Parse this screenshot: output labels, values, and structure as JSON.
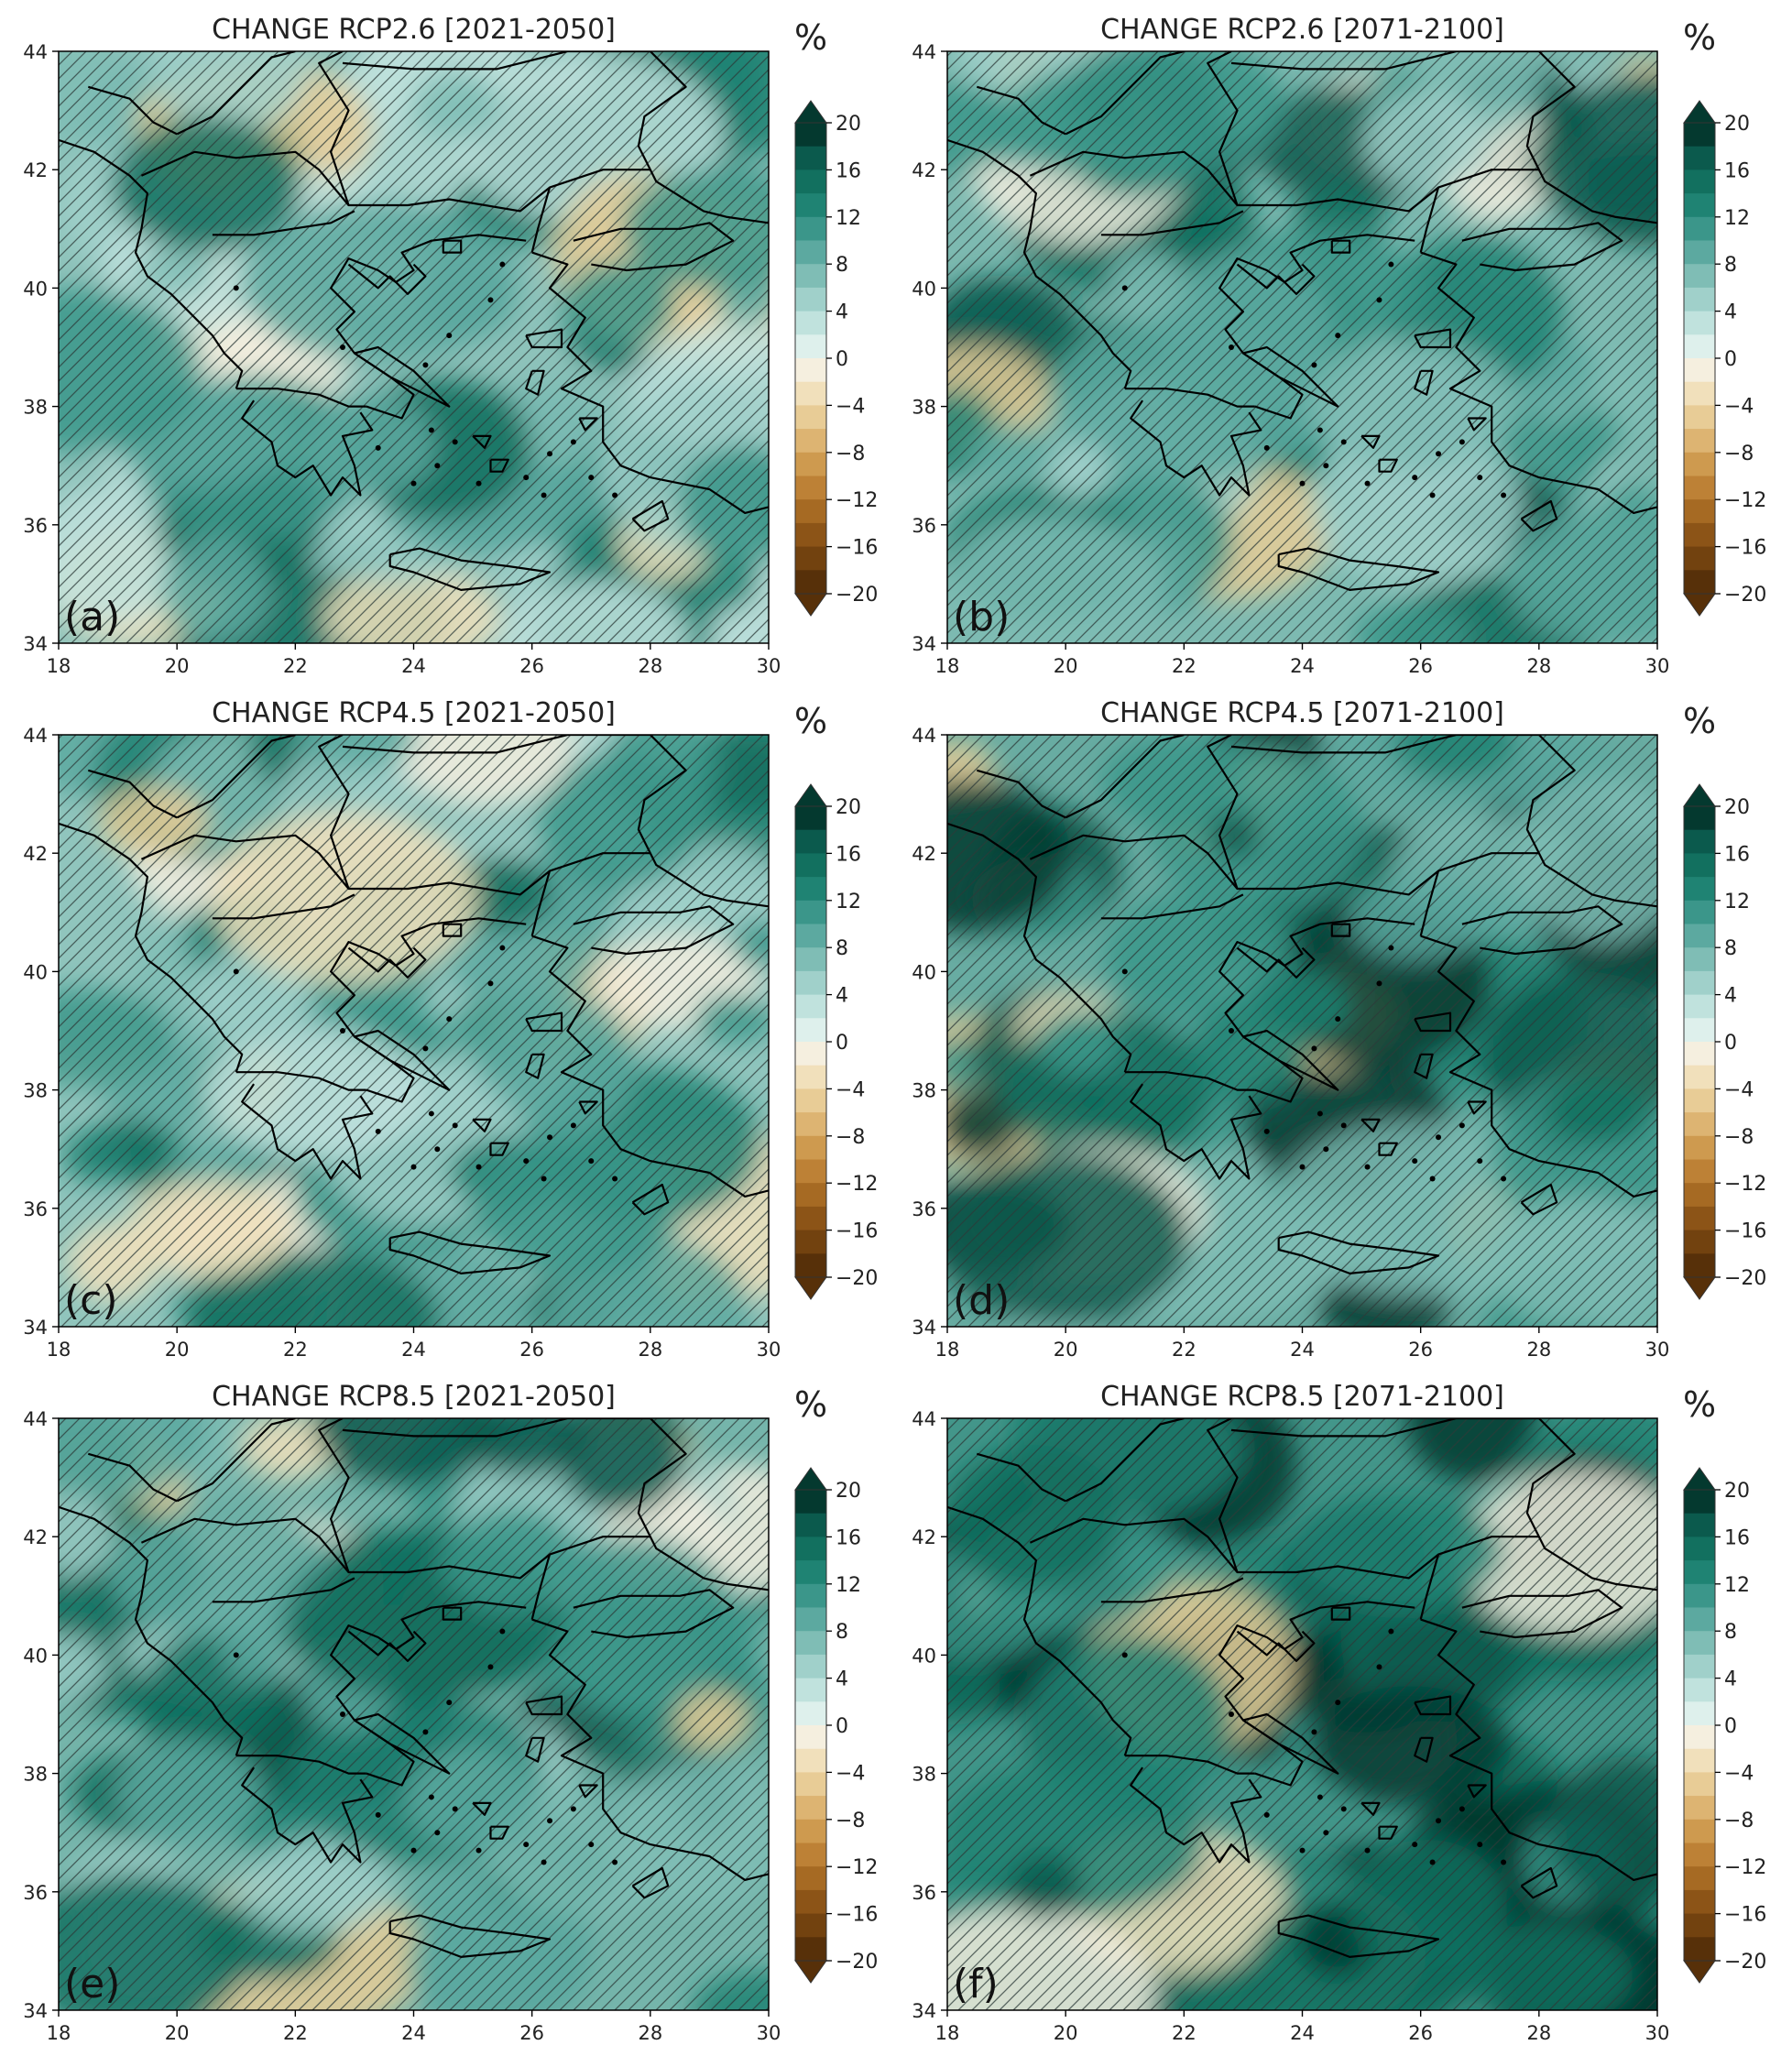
{
  "figure": {
    "panels": [
      {
        "id": "a",
        "title": "CHANGE RCP2.6 [2021-2050]",
        "label": "(a)",
        "intensity": 0.3
      },
      {
        "id": "b",
        "title": "CHANGE RCP2.6 [2071-2100]",
        "label": "(b)",
        "intensity": 0.42
      },
      {
        "id": "c",
        "title": "CHANGE RCP4.5 [2021-2050]",
        "label": "(c)",
        "intensity": 0.28
      },
      {
        "id": "d",
        "title": "CHANGE RCP4.5 [2071-2100]",
        "label": "(d)",
        "intensity": 0.58
      },
      {
        "id": "e",
        "title": "CHANGE RCP8.5 [2021-2050]",
        "label": "(e)",
        "intensity": 0.48
      },
      {
        "id": "f",
        "title": "CHANGE RCP8.5 [2071-2100]",
        "label": "(f)",
        "intensity": 0.85
      }
    ],
    "x_ticks": [
      "18",
      "20",
      "22",
      "24",
      "26",
      "28",
      "30"
    ],
    "y_ticks": [
      "44",
      "42",
      "40",
      "38",
      "36",
      "34"
    ],
    "colorbar": {
      "unit": "%",
      "ticks": [
        "20",
        "16",
        "12",
        "8",
        "4",
        "0",
        "−4",
        "−8",
        "−12",
        "−16",
        "−20"
      ],
      "colors": [
        "#04392f",
        "#0b5a4d",
        "#12705f",
        "#1f8373",
        "#3b968a",
        "#5ca9a0",
        "#7fbdb5",
        "#a0d0ca",
        "#c0e2dd",
        "#def0ec",
        "#f5efdf",
        "#f1e0bb",
        "#e8cc96",
        "#ddb472",
        "#ce9a4f",
        "#bd8136",
        "#a66a23",
        "#8c5417",
        "#72420f",
        "#573009"
      ]
    }
  }
}
